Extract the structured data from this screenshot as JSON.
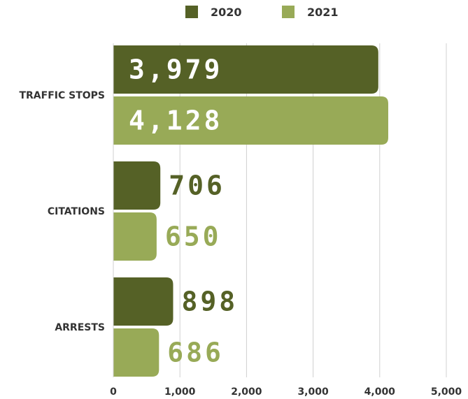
{
  "chart_data": {
    "type": "bar",
    "orientation": "horizontal",
    "categories": [
      "TRAFFIC STOPS",
      "CITATIONS",
      "ARRESTS"
    ],
    "series": [
      {
        "name": "2020",
        "values": [
          3979,
          706,
          898
        ],
        "labels": [
          "3,979",
          "706",
          "898"
        ],
        "color": "#556126"
      },
      {
        "name": "2021",
        "values": [
          4128,
          650,
          686
        ],
        "labels": [
          "4,128",
          "650",
          "686"
        ],
        "color": "#98aa57"
      }
    ],
    "xlim": [
      0,
      5000
    ],
    "xticks": [
      0,
      1000,
      2000,
      3000,
      4000,
      5000
    ],
    "xtick_labels": [
      "0",
      "1,000",
      "2,000",
      "3,000",
      "4,000",
      "5,000"
    ],
    "grid": true,
    "legend": "top-center",
    "label_inside_bar": "white"
  }
}
